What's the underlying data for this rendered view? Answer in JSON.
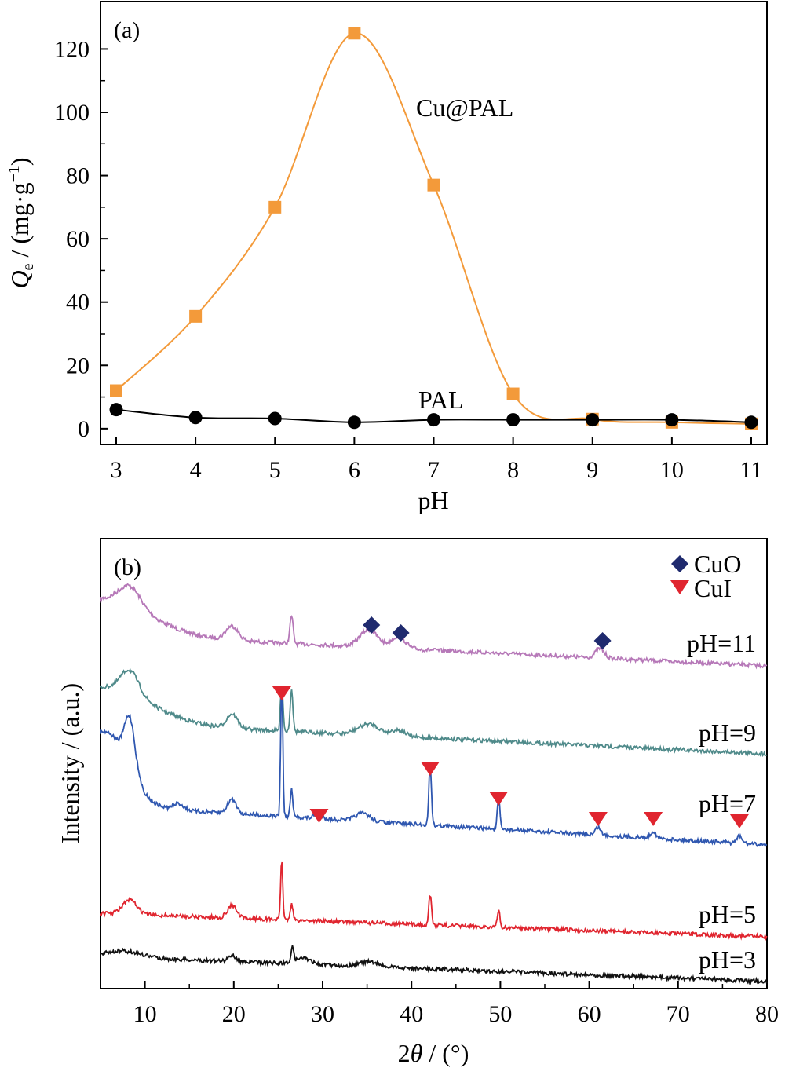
{
  "chart_data": [
    {
      "type": "line",
      "panel_label": "(a)",
      "title": "",
      "xlabel": "pH",
      "ylabel": {
        "symbol": "Q",
        "subscript": "e",
        "rest": " / (mg·g",
        "superscript": "−1",
        "close": ")"
      },
      "xlim": [
        3,
        11
      ],
      "ylim": [
        -5,
        135
      ],
      "xticks": [
        3,
        4,
        5,
        6,
        7,
        8,
        9,
        10,
        11
      ],
      "yticks": [
        0,
        20,
        40,
        60,
        80,
        100,
        120
      ],
      "series": [
        {
          "name": "Cu@PAL",
          "color": "#F39A3A",
          "marker": "square",
          "x": [
            3,
            4,
            5,
            6,
            7,
            8,
            9,
            10,
            11
          ],
          "y": [
            12,
            35.5,
            70,
            125,
            77,
            11,
            3,
            2,
            1.5
          ]
        },
        {
          "name": "PAL",
          "color": "#000000",
          "marker": "circle",
          "x": [
            3,
            4,
            5,
            6,
            7,
            8,
            9,
            10,
            11
          ],
          "y": [
            6,
            3.5,
            3.2,
            2,
            2.8,
            2.8,
            2.8,
            2.8,
            2
          ]
        }
      ]
    },
    {
      "type": "line",
      "panel_label": "(b)",
      "title": "",
      "xlabel": {
        "pre": "2",
        "sym": "θ",
        "post": " / (°)"
      },
      "ylabel": "Intensity / (a.u.)",
      "xlim": [
        5,
        80
      ],
      "xticks": [
        10,
        20,
        30,
        40,
        50,
        60,
        70,
        80
      ],
      "legend": [
        {
          "name": "CuO",
          "marker": "diamond",
          "color": "#1F2A6E"
        },
        {
          "name": "CuI",
          "marker": "triangle-down",
          "color": "#E0252F"
        }
      ],
      "series": [
        {
          "name": "pH=11",
          "color": "#B678B8"
        },
        {
          "name": "pH=9",
          "color": "#4F8A8A"
        },
        {
          "name": "pH=7",
          "color": "#2F57B0"
        },
        {
          "name": "pH=5",
          "color": "#E0252F"
        },
        {
          "name": "pH=3",
          "color": "#111111"
        }
      ]
    }
  ]
}
